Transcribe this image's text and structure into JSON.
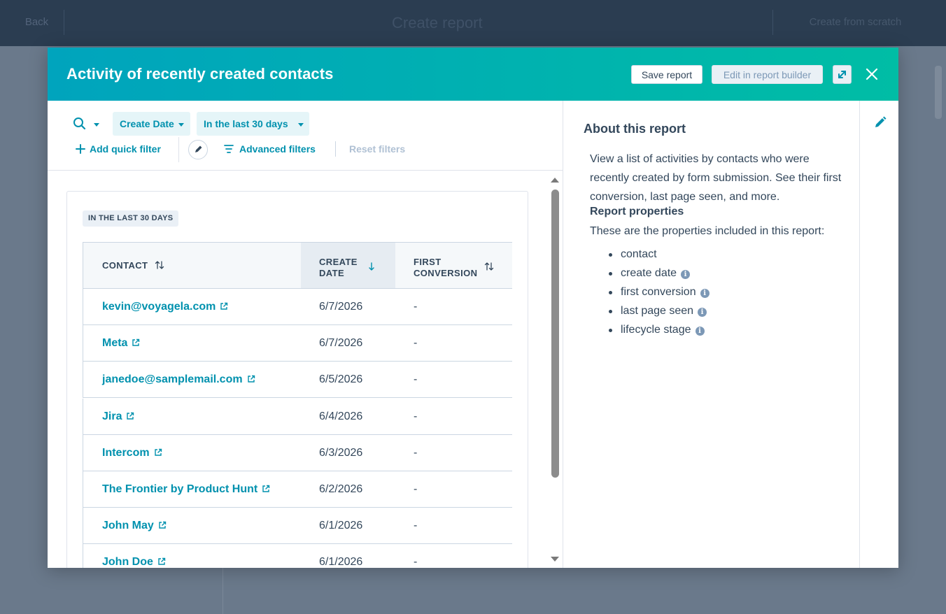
{
  "background": {
    "back_label": "Back",
    "title": "Create report",
    "cta_label": "Create from scratch"
  },
  "modal": {
    "title": "Activity of recently created contacts",
    "save_label": "Save report",
    "edit_label": "Edit in report builder"
  },
  "filters": {
    "create_date_label": "Create Date",
    "range_label": "In the last 30 days",
    "add_quick_label": "Add quick filter",
    "advanced_label": "Advanced filters",
    "reset_label": "Reset filters"
  },
  "results": {
    "tag": "IN THE LAST 30 DAYS",
    "columns": {
      "contact": "CONTACT",
      "create_date_1": "CREATE",
      "create_date_2": "DATE",
      "first_conv_1": "FIRST",
      "first_conv_2": "CONVERSION"
    },
    "rows": [
      {
        "name": "kevin@voyagela.com",
        "date": "6/7/2026",
        "conv": "-"
      },
      {
        "name": "Meta",
        "date": "6/7/2026",
        "conv": "-"
      },
      {
        "name": "janedoe@samplemail.com",
        "date": "6/5/2026",
        "conv": "-"
      },
      {
        "name": "Jira",
        "date": "6/4/2026",
        "conv": "-"
      },
      {
        "name": "Intercom",
        "date": "6/3/2026",
        "conv": "-"
      },
      {
        "name": "The Frontier by Product Hunt",
        "date": "6/2/2026",
        "conv": "-"
      },
      {
        "name": "John May",
        "date": "6/1/2026",
        "conv": "-"
      },
      {
        "name": "John Doe",
        "date": "6/1/2026",
        "conv": "-"
      }
    ]
  },
  "about": {
    "title": "About this report",
    "description": "View a list of activities by contacts who were recently created by form submission. See their first conversion, last page seen, and more.",
    "props_title": "Report properties",
    "props_sub": "These are the properties included in this report:",
    "properties": [
      {
        "label": "contact",
        "info": false
      },
      {
        "label": "create date",
        "info": true
      },
      {
        "label": "first conversion",
        "info": true
      },
      {
        "label": "last page seen",
        "info": true
      },
      {
        "label": "lifecycle stage",
        "info": true
      }
    ]
  },
  "colors": {
    "header_start": "#00a4bd",
    "header_end": "#00bda5",
    "link": "#0091ae",
    "text": "#33475b"
  }
}
